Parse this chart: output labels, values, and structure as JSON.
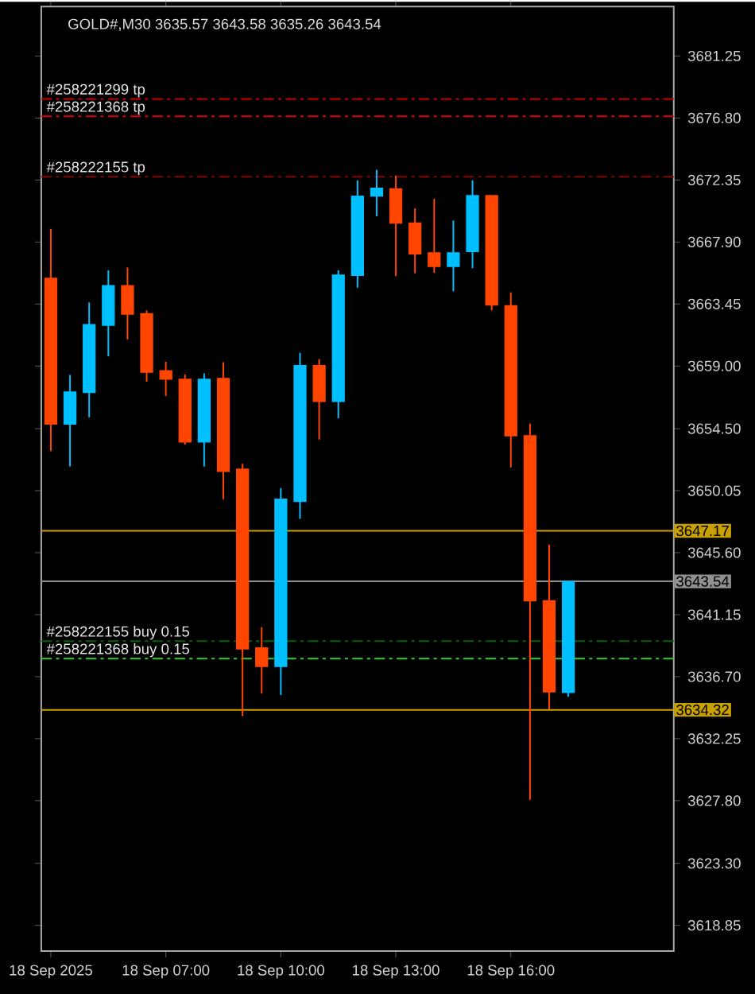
{
  "chart_data": {
    "type": "candlestick",
    "title": "GOLD#,M30  3635.57 3643.58 3635.26 3643.54",
    "categories": [
      "18 Sep 2025",
      null,
      null,
      null,
      null,
      null,
      "18 Sep 07:00",
      null,
      null,
      null,
      null,
      null,
      "18 Sep 10:00",
      null,
      null,
      null,
      null,
      null,
      "18 Sep 13:00",
      null,
      null,
      null,
      null,
      null,
      "18 Sep 16:00",
      null,
      null,
      null,
      null,
      null,
      null,
      null,
      null
    ],
    "ohlc": [
      [
        3665.3,
        3668.84,
        3652.89,
        3654.83
      ],
      [
        3654.83,
        3658.36,
        3651.79,
        3657.14
      ],
      [
        3657.1,
        3663.56,
        3655.32,
        3661.97
      ],
      [
        3661.92,
        3665.87,
        3659.69,
        3664.77
      ],
      [
        3664.77,
        3666.07,
        3660.9,
        3662.72
      ],
      [
        3662.76,
        3662.99,
        3657.87,
        3658.55
      ],
      [
        3658.66,
        3659.3,
        3656.84,
        3658.05
      ],
      [
        3658.05,
        3658.39,
        3653.35,
        3653.54
      ],
      [
        3653.54,
        3658.47,
        3651.79,
        3658.05
      ],
      [
        3658.1,
        3659.27,
        3649.44,
        3651.44
      ],
      [
        3651.6,
        3651.98,
        3633.87,
        3638.69
      ],
      [
        3638.77,
        3640.25,
        3635.5,
        3637.43
      ],
      [
        3637.43,
        3650.24,
        3635.38,
        3649.44
      ],
      [
        3649.28,
        3659.95,
        3648.03,
        3659.04
      ],
      [
        3659.04,
        3659.5,
        3653.72,
        3656.46
      ],
      [
        3656.46,
        3665.87,
        3655.25,
        3665.53
      ],
      [
        3665.5,
        3672.33,
        3664.62,
        3671.19
      ],
      [
        3671.19,
        3673.08,
        3669.75,
        3671.76
      ],
      [
        3671.72,
        3672.67,
        3665.45,
        3669.26
      ],
      [
        3669.26,
        3670.32,
        3665.65,
        3667.05
      ],
      [
        3667.13,
        3671.0,
        3665.68,
        3666.14
      ],
      [
        3666.14,
        3669.44,
        3664.36,
        3667.13
      ],
      [
        3667.21,
        3672.33,
        3666.02,
        3671.23
      ],
      [
        3671.23,
        3671.23,
        3662.99,
        3663.37
      ],
      [
        3663.33,
        3664.28,
        3651.72,
        3653.99
      ],
      [
        3653.99,
        3654.86,
        3627.87,
        3642.15
      ],
      [
        3642.15,
        3646.17,
        3634.36,
        3635.61
      ],
      [
        3635.57,
        3643.58,
        3635.26,
        3643.54
      ],
      null,
      null,
      null,
      null,
      null
    ],
    "colors": [
      "#ff4500",
      "#00bfff",
      "#00bfff",
      "#00bfff",
      "#ff4500",
      "#ff4500",
      "#ff4500",
      "#ff4500",
      "#00bfff",
      "#ff4500",
      "#ff4500",
      "#ff4500",
      "#00bfff",
      "#00bfff",
      "#ff4500",
      "#00bfff",
      "#00bfff",
      "#00bfff",
      "#ff4500",
      "#ff4500",
      "#ff4500",
      "#00bfff",
      "#00bfff",
      "#ff4500",
      "#ff4500",
      "#ff4500",
      "#ff4500",
      "#00bfff",
      null,
      null,
      null,
      null,
      null
    ],
    "ylim": [
      3617.0,
      3684.8
    ],
    "yticks": [
      3681.25,
      {
        "value": 3676.8,
        "label": "3676.80"
      },
      3672.35,
      {
        "value": 3667.9,
        "label": "3667.90"
      },
      3663.45,
      {
        "value": 3659.0,
        "label": "3659.00"
      },
      {
        "value": 3654.5,
        "label": "3654.50"
      },
      3650.05,
      {
        "value": 3645.6,
        "label": "3645.60"
      },
      3641.15,
      {
        "value": 3636.7,
        "label": "3636.70"
      },
      3632.25,
      {
        "value": 3627.8,
        "label": "3627.80"
      },
      {
        "value": 3623.3,
        "label": "3623.30"
      },
      3618.85
    ],
    "ref_lines": [
      {
        "axis": "y",
        "value": 3678.17,
        "label": "#258221299 tp",
        "color": "#cc0000",
        "line_style": "dashdot"
      },
      {
        "axis": "y",
        "value": 3676.92,
        "label": "#258221368 tp",
        "color": "#e00000",
        "line_style": "dashdot"
      },
      {
        "axis": "y",
        "value": 3672.59,
        "label": "#258222155 tp",
        "color": "#8b0000",
        "line_style": "dashdot"
      },
      {
        "axis": "y",
        "value": 3639.25,
        "label": "#258222155 buy 0.15",
        "color": "#006400",
        "line_style": "dashdot"
      },
      {
        "axis": "y",
        "value": 3638.0,
        "label": "#258221368 buy 0.15",
        "color": "#32cd32",
        "line_style": "dashdot"
      },
      {
        "axis": "y",
        "value": 3647.17,
        "label": "3647.17",
        "color": "#c8a000",
        "line_style": "solid"
      },
      {
        "axis": "y",
        "value": 3643.54,
        "label": "3643.54",
        "color": "#909090",
        "line_style": "solid"
      },
      {
        "axis": "y",
        "value": 3634.32,
        "label": "3634.32",
        "color": "#c8a000",
        "line_style": "solid"
      }
    ]
  }
}
